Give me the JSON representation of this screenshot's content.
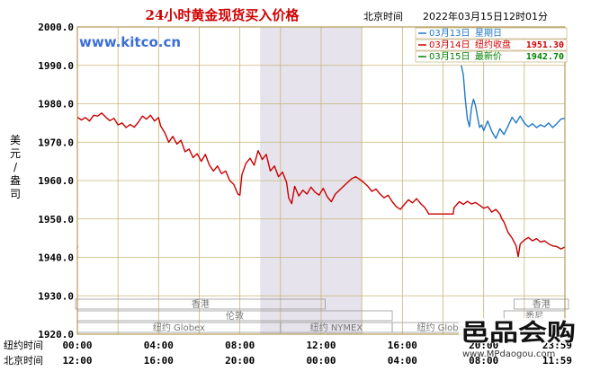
{
  "chart_data": {
    "type": "line",
    "title": "24小时黄金现货买入价格",
    "header_timezone": "北京时间",
    "header_timestamp": "2022年03月15日12时01分",
    "watermark": "www.kitco.cn",
    "ylabel": "美元/盎司",
    "ylim": [
      1920,
      2000
    ],
    "y_ticks": [
      "2000.0",
      "1990.0",
      "1980.0",
      "1970.0",
      "1960.0",
      "1950.0",
      "1940.0",
      "1930.0",
      "1920.0"
    ],
    "xlim": [
      0,
      24
    ],
    "x_ticks": [
      {
        "x": 0,
        "ny": "00:00",
        "bj": "12:00"
      },
      {
        "x": 4,
        "ny": "04:00",
        "bj": "16:00"
      },
      {
        "x": 8,
        "ny": "08:00",
        "bj": "20:00"
      },
      {
        "x": 12,
        "ny": "12:00",
        "bj": "00:00"
      },
      {
        "x": 16,
        "ny": "16:00",
        "bj": "04:00"
      },
      {
        "x": 20,
        "ny": "20:00",
        "bj": "08:00"
      },
      {
        "x": 23.98,
        "ny": "23:59",
        "bj": "11:59"
      }
    ],
    "row_labels": {
      "ny": "纽约时间",
      "bj": "北京时间"
    },
    "grid": true,
    "shaded_band_x": [
      9,
      14
    ],
    "legend_position": "top-right",
    "legend": [
      {
        "date": "03月13日",
        "label": "星期日",
        "value": "",
        "color": "#1f78c8"
      },
      {
        "date": "03月14日",
        "label": "纽约收盘",
        "value": "1951.30",
        "color": "#d00000"
      },
      {
        "date": "03月15日",
        "label": "最新价",
        "value": "1942.70",
        "color": "#008000"
      }
    ],
    "sessions": [
      {
        "label": "香港",
        "row": 1,
        "x": [
          -0.2,
          12.2
        ]
      },
      {
        "label": "伦敦",
        "row": 2,
        "x": [
          0,
          15.5
        ]
      },
      {
        "label": "纽约 Globex",
        "row": 3,
        "x": [
          0,
          10
        ]
      },
      {
        "label": "纽约 NYMEX",
        "row": 3,
        "x": [
          10,
          15.5
        ]
      },
      {
        "label": "纽约 Globex",
        "row": 3,
        "x": [
          15.5,
          20.5
        ]
      },
      {
        "label": "香港",
        "row": 1,
        "x": [
          21.5,
          24.5
        ]
      },
      {
        "label": "悉尼",
        "row": 2,
        "x": [
          21,
          24
        ]
      }
    ],
    "series": [
      {
        "name": "03月14日",
        "color": "#c80000",
        "points": [
          [
            0.0,
            1976.5
          ],
          [
            0.2,
            1975.8
          ],
          [
            0.4,
            1976.4
          ],
          [
            0.6,
            1975.5
          ],
          [
            0.8,
            1977.0
          ],
          [
            1.0,
            1976.8
          ],
          [
            1.2,
            1977.6
          ],
          [
            1.4,
            1976.5
          ],
          [
            1.6,
            1975.6
          ],
          [
            1.8,
            1976.2
          ],
          [
            2.0,
            1974.5
          ],
          [
            2.2,
            1975.0
          ],
          [
            2.4,
            1973.8
          ],
          [
            2.6,
            1974.6
          ],
          [
            2.8,
            1973.9
          ],
          [
            3.0,
            1975.2
          ],
          [
            3.2,
            1976.8
          ],
          [
            3.4,
            1976.0
          ],
          [
            3.6,
            1977.0
          ],
          [
            3.8,
            1975.5
          ],
          [
            4.0,
            1976.4
          ],
          [
            4.1,
            1974.2
          ],
          [
            4.3,
            1972.5
          ],
          [
            4.5,
            1970.0
          ],
          [
            4.7,
            1971.5
          ],
          [
            4.9,
            1969.5
          ],
          [
            5.1,
            1970.5
          ],
          [
            5.3,
            1967.5
          ],
          [
            5.5,
            1968.2
          ],
          [
            5.7,
            1966.0
          ],
          [
            5.9,
            1967.0
          ],
          [
            6.1,
            1965.0
          ],
          [
            6.3,
            1966.8
          ],
          [
            6.5,
            1964.0
          ],
          [
            6.7,
            1962.5
          ],
          [
            6.9,
            1963.8
          ],
          [
            7.1,
            1961.8
          ],
          [
            7.3,
            1962.5
          ],
          [
            7.5,
            1960.0
          ],
          [
            7.7,
            1959.0
          ],
          [
            7.9,
            1956.5
          ],
          [
            8.0,
            1956.2
          ],
          [
            8.1,
            1961.5
          ],
          [
            8.3,
            1964.5
          ],
          [
            8.5,
            1965.8
          ],
          [
            8.7,
            1964.0
          ],
          [
            8.9,
            1967.8
          ],
          [
            9.1,
            1965.5
          ],
          [
            9.3,
            1966.8
          ],
          [
            9.5,
            1962.5
          ],
          [
            9.7,
            1963.8
          ],
          [
            9.9,
            1961.0
          ],
          [
            10.1,
            1962.2
          ],
          [
            10.3,
            1959.5
          ],
          [
            10.4,
            1955.5
          ],
          [
            10.55,
            1954.0
          ],
          [
            10.7,
            1958.5
          ],
          [
            10.9,
            1956.0
          ],
          [
            11.1,
            1957.5
          ],
          [
            11.3,
            1956.5
          ],
          [
            11.5,
            1958.3
          ],
          [
            11.7,
            1957.0
          ],
          [
            11.9,
            1956.2
          ],
          [
            12.1,
            1958.0
          ],
          [
            12.3,
            1955.8
          ],
          [
            12.5,
            1954.5
          ],
          [
            12.7,
            1956.5
          ],
          [
            12.9,
            1957.5
          ],
          [
            13.1,
            1958.5
          ],
          [
            13.3,
            1959.5
          ],
          [
            13.5,
            1960.5
          ],
          [
            13.7,
            1961.0
          ],
          [
            13.9,
            1960.3
          ],
          [
            14.1,
            1959.5
          ],
          [
            14.3,
            1958.5
          ],
          [
            14.5,
            1957.2
          ],
          [
            14.7,
            1957.8
          ],
          [
            14.9,
            1956.5
          ],
          [
            15.1,
            1955.5
          ],
          [
            15.3,
            1956.2
          ],
          [
            15.5,
            1954.5
          ],
          [
            15.7,
            1953.2
          ],
          [
            15.9,
            1952.5
          ],
          [
            16.1,
            1953.8
          ],
          [
            16.3,
            1955.0
          ],
          [
            16.5,
            1954.2
          ],
          [
            16.7,
            1955.3
          ],
          [
            16.9,
            1954.0
          ],
          [
            17.1,
            1953.0
          ],
          [
            17.3,
            1951.3
          ],
          [
            18.5,
            1951.3
          ],
          [
            18.55,
            1953.0
          ],
          [
            18.8,
            1954.5
          ],
          [
            19.0,
            1953.8
          ],
          [
            19.2,
            1954.6
          ],
          [
            19.4,
            1953.9
          ],
          [
            19.6,
            1954.3
          ],
          [
            19.8,
            1953.6
          ],
          [
            20.0,
            1952.8
          ],
          [
            20.2,
            1953.2
          ],
          [
            20.4,
            1951.8
          ],
          [
            20.6,
            1952.5
          ],
          [
            20.8,
            1951.3
          ],
          [
            20.9,
            1950.0
          ],
          [
            21.0,
            1949.2
          ],
          [
            21.2,
            1946.5
          ],
          [
            21.4,
            1945.0
          ],
          [
            21.6,
            1943.0
          ],
          [
            21.7,
            1940.2
          ],
          [
            21.8,
            1943.5
          ],
          [
            22.0,
            1944.5
          ],
          [
            22.2,
            1945.2
          ],
          [
            22.4,
            1944.3
          ],
          [
            22.6,
            1944.9
          ],
          [
            22.8,
            1944.0
          ],
          [
            23.0,
            1944.3
          ],
          [
            23.2,
            1943.5
          ],
          [
            23.4,
            1943.0
          ],
          [
            23.6,
            1942.8
          ],
          [
            23.8,
            1942.2
          ],
          [
            24.0,
            1942.7
          ]
        ]
      },
      {
        "name": "03月13日",
        "color": "#1f78c8",
        "points": [
          [
            18.9,
            1990.0
          ],
          [
            19.0,
            1987.5
          ],
          [
            19.1,
            1981.0
          ],
          [
            19.2,
            1976.0
          ],
          [
            19.3,
            1974.0
          ],
          [
            19.4,
            1979.0
          ],
          [
            19.5,
            1981.2
          ],
          [
            19.6,
            1979.5
          ],
          [
            19.7,
            1976.5
          ],
          [
            19.8,
            1973.8
          ],
          [
            19.9,
            1974.5
          ],
          [
            20.0,
            1973.0
          ],
          [
            20.2,
            1975.5
          ],
          [
            20.4,
            1972.8
          ],
          [
            20.6,
            1971.0
          ],
          [
            20.8,
            1973.5
          ],
          [
            21.0,
            1972.0
          ],
          [
            21.2,
            1974.2
          ],
          [
            21.4,
            1976.5
          ],
          [
            21.6,
            1975.0
          ],
          [
            21.8,
            1976.8
          ],
          [
            22.0,
            1975.0
          ],
          [
            22.2,
            1974.0
          ],
          [
            22.4,
            1974.8
          ],
          [
            22.6,
            1973.8
          ],
          [
            22.8,
            1974.5
          ],
          [
            23.0,
            1974.0
          ],
          [
            23.2,
            1975.0
          ],
          [
            23.4,
            1973.8
          ],
          [
            23.6,
            1974.8
          ],
          [
            23.8,
            1976.0
          ],
          [
            24.0,
            1976.2
          ]
        ]
      },
      {
        "name": "03月15日",
        "color": "#008000",
        "points": [
          [
            0.0,
            1942.8
          ],
          [
            0.02,
            1942.6
          ]
        ]
      }
    ]
  },
  "branding": {
    "logo_text": "邑品会购",
    "logo_url": "www.MPdaogou.com"
  }
}
